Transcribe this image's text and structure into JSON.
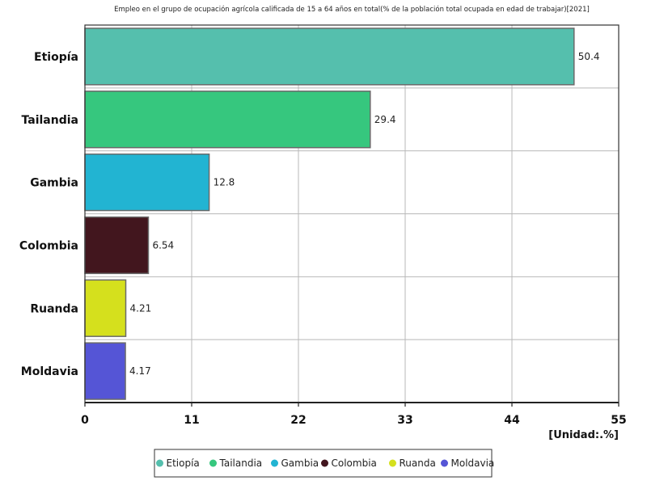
{
  "chart_data": {
    "type": "bar",
    "orientation": "horizontal",
    "title": "Empleo en el grupo de ocupación agrícola calificada de 15 a 64 años en total(% de la población total ocupada en edad de trabajar)[2021]",
    "categories": [
      "Etiopía",
      "Tailandia",
      "Gambia",
      "Colombia",
      "Ruanda",
      "Moldavia"
    ],
    "values": [
      50.4,
      29.4,
      12.8,
      6.54,
      4.21,
      4.17
    ],
    "value_labels": [
      "50.4",
      "29.4",
      "12.8",
      "6.54",
      "4.21",
      "4.17"
    ],
    "colors": [
      "#55bfad",
      "#36c77e",
      "#22b4d2",
      "#42161e",
      "#d5e01d",
      "#5555d6"
    ],
    "xlim": [
      0,
      55
    ],
    "xticks": [
      "0",
      "11",
      "22",
      "33",
      "44",
      "55"
    ],
    "tick_values": [
      0,
      11,
      22,
      33,
      44,
      55
    ],
    "unit_label": "[Unidad:.%]",
    "grid": true,
    "legend": {
      "placement": "bottom-center",
      "entries": [
        "Etiopía",
        "Tailandia",
        "Gambia",
        "Colombia",
        "Ruanda",
        "Moldavia"
      ]
    }
  }
}
